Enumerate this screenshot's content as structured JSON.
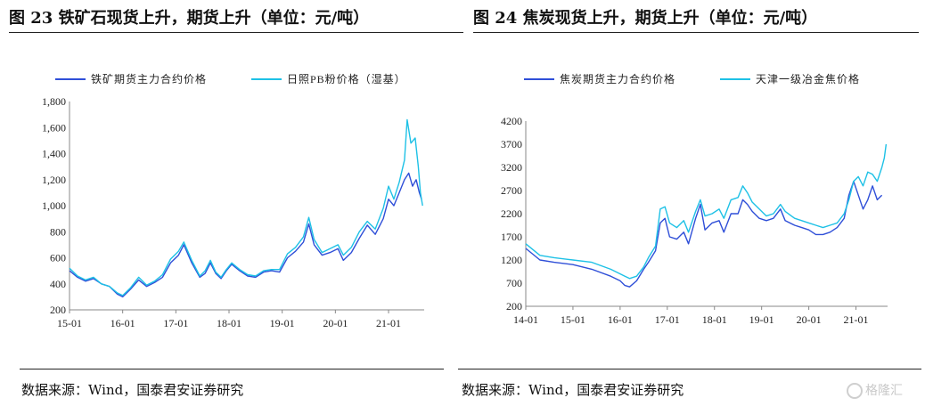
{
  "figures": [
    {
      "title": "图 23 铁矿石现货上升，期货上升（单位：元/吨）",
      "source": "数据来源：Wind，国泰君安证券研究"
    },
    {
      "title": "图 24 焦炭现货上升，期货上升（单位：元/吨）",
      "source": "数据来源：Wind，国泰君安证券研究"
    }
  ],
  "watermark": "格隆汇",
  "chart_data": [
    {
      "type": "line",
      "title": "",
      "xlabel": "",
      "ylabel": "",
      "x_ticks": [
        "15-01",
        "16-01",
        "17-01",
        "18-01",
        "19-01",
        "20-01",
        "21-01"
      ],
      "y_ticks": [
        "200",
        "400",
        "600",
        "800",
        "1,000",
        "1,200",
        "1,400",
        "1,600",
        "1,800"
      ],
      "ylim": [
        200,
        1800
      ],
      "xlim": [
        2015.0,
        2021.67
      ],
      "grid": false,
      "legend_position": "top",
      "series": [
        {
          "name": "铁矿期货主力合约价格",
          "color": "#2f4fd8",
          "points": [
            [
              2015.0,
              500
            ],
            [
              2015.15,
              450
            ],
            [
              2015.3,
              420
            ],
            [
              2015.45,
              440
            ],
            [
              2015.6,
              400
            ],
            [
              2015.75,
              380
            ],
            [
              2015.9,
              320
            ],
            [
              2016.0,
              300
            ],
            [
              2016.15,
              360
            ],
            [
              2016.3,
              430
            ],
            [
              2016.45,
              380
            ],
            [
              2016.6,
              410
            ],
            [
              2016.75,
              450
            ],
            [
              2016.9,
              560
            ],
            [
              2017.05,
              620
            ],
            [
              2017.15,
              700
            ],
            [
              2017.3,
              560
            ],
            [
              2017.45,
              450
            ],
            [
              2017.55,
              480
            ],
            [
              2017.65,
              560
            ],
            [
              2017.75,
              480
            ],
            [
              2017.85,
              440
            ],
            [
              2017.95,
              500
            ],
            [
              2018.05,
              550
            ],
            [
              2018.2,
              500
            ],
            [
              2018.35,
              460
            ],
            [
              2018.5,
              450
            ],
            [
              2018.65,
              490
            ],
            [
              2018.8,
              500
            ],
            [
              2018.95,
              490
            ],
            [
              2019.1,
              600
            ],
            [
              2019.25,
              650
            ],
            [
              2019.4,
              720
            ],
            [
              2019.5,
              860
            ],
            [
              2019.6,
              700
            ],
            [
              2019.75,
              620
            ],
            [
              2019.9,
              640
            ],
            [
              2020.05,
              670
            ],
            [
              2020.15,
              580
            ],
            [
              2020.3,
              640
            ],
            [
              2020.45,
              750
            ],
            [
              2020.6,
              850
            ],
            [
              2020.75,
              780
            ],
            [
              2020.9,
              900
            ],
            [
              2021.0,
              1050
            ],
            [
              2021.1,
              1000
            ],
            [
              2021.2,
              1100
            ],
            [
              2021.3,
              1200
            ],
            [
              2021.38,
              1250
            ],
            [
              2021.45,
              1150
            ],
            [
              2021.52,
              1200
            ],
            [
              2021.58,
              1100
            ],
            [
              2021.62,
              1050
            ]
          ]
        },
        {
          "name": "日照PB粉价格（湿基）",
          "color": "#1ec1e6",
          "points": [
            [
              2015.0,
              520
            ],
            [
              2015.15,
              460
            ],
            [
              2015.3,
              430
            ],
            [
              2015.45,
              450
            ],
            [
              2015.6,
              400
            ],
            [
              2015.75,
              380
            ],
            [
              2015.9,
              330
            ],
            [
              2016.0,
              310
            ],
            [
              2016.15,
              370
            ],
            [
              2016.3,
              450
            ],
            [
              2016.45,
              390
            ],
            [
              2016.6,
              420
            ],
            [
              2016.75,
              470
            ],
            [
              2016.9,
              590
            ],
            [
              2017.05,
              650
            ],
            [
              2017.15,
              720
            ],
            [
              2017.3,
              580
            ],
            [
              2017.45,
              460
            ],
            [
              2017.55,
              500
            ],
            [
              2017.65,
              580
            ],
            [
              2017.75,
              490
            ],
            [
              2017.85,
              450
            ],
            [
              2017.95,
              510
            ],
            [
              2018.05,
              560
            ],
            [
              2018.2,
              510
            ],
            [
              2018.35,
              470
            ],
            [
              2018.5,
              460
            ],
            [
              2018.65,
              500
            ],
            [
              2018.8,
              510
            ],
            [
              2018.95,
              510
            ],
            [
              2019.1,
              630
            ],
            [
              2019.25,
              680
            ],
            [
              2019.4,
              760
            ],
            [
              2019.5,
              910
            ],
            [
              2019.6,
              740
            ],
            [
              2019.75,
              640
            ],
            [
              2019.9,
              670
            ],
            [
              2020.05,
              700
            ],
            [
              2020.15,
              620
            ],
            [
              2020.3,
              680
            ],
            [
              2020.45,
              800
            ],
            [
              2020.6,
              880
            ],
            [
              2020.75,
              820
            ],
            [
              2020.9,
              980
            ],
            [
              2021.0,
              1150
            ],
            [
              2021.1,
              1050
            ],
            [
              2021.2,
              1180
            ],
            [
              2021.3,
              1350
            ],
            [
              2021.35,
              1660
            ],
            [
              2021.42,
              1480
            ],
            [
              2021.5,
              1520
            ],
            [
              2021.56,
              1300
            ],
            [
              2021.6,
              1100
            ],
            [
              2021.64,
              1000
            ]
          ]
        }
      ]
    },
    {
      "type": "line",
      "title": "",
      "xlabel": "",
      "ylabel": "",
      "x_ticks": [
        "14-01",
        "15-01",
        "16-01",
        "17-01",
        "18-01",
        "19-01",
        "20-01",
        "21-01"
      ],
      "y_ticks": [
        "200",
        "700",
        "1200",
        "1700",
        "2200",
        "2700",
        "3200",
        "3700",
        "4200"
      ],
      "ylim": [
        200,
        4200
      ],
      "xlim": [
        2014.0,
        2021.67
      ],
      "grid": false,
      "legend_position": "top",
      "series": [
        {
          "name": "焦炭期货主力合约价格",
          "color": "#2f4fd8",
          "points": [
            [
              2014.0,
              1450
            ],
            [
              2014.3,
              1200
            ],
            [
              2014.6,
              1150
            ],
            [
              2015.0,
              1100
            ],
            [
              2015.4,
              1000
            ],
            [
              2015.8,
              850
            ],
            [
              2016.0,
              750
            ],
            [
              2016.1,
              650
            ],
            [
              2016.2,
              620
            ],
            [
              2016.35,
              750
            ],
            [
              2016.5,
              1000
            ],
            [
              2016.6,
              1150
            ],
            [
              2016.75,
              1400
            ],
            [
              2016.85,
              2000
            ],
            [
              2016.95,
              2100
            ],
            [
              2017.05,
              1700
            ],
            [
              2017.2,
              1650
            ],
            [
              2017.35,
              1800
            ],
            [
              2017.45,
              1550
            ],
            [
              2017.6,
              2100
            ],
            [
              2017.7,
              2400
            ],
            [
              2017.8,
              1850
            ],
            [
              2017.95,
              2000
            ],
            [
              2018.1,
              2050
            ],
            [
              2018.2,
              1800
            ],
            [
              2018.35,
              2200
            ],
            [
              2018.5,
              2200
            ],
            [
              2018.6,
              2500
            ],
            [
              2018.7,
              2400
            ],
            [
              2018.8,
              2250
            ],
            [
              2018.95,
              2100
            ],
            [
              2019.1,
              2050
            ],
            [
              2019.25,
              2100
            ],
            [
              2019.4,
              2300
            ],
            [
              2019.5,
              2050
            ],
            [
              2019.7,
              1950
            ],
            [
              2019.85,
              1900
            ],
            [
              2020.0,
              1850
            ],
            [
              2020.15,
              1750
            ],
            [
              2020.3,
              1750
            ],
            [
              2020.45,
              1800
            ],
            [
              2020.6,
              1900
            ],
            [
              2020.75,
              2100
            ],
            [
              2020.85,
              2600
            ],
            [
              2020.95,
              2900
            ],
            [
              2021.05,
              2600
            ],
            [
              2021.15,
              2300
            ],
            [
              2021.25,
              2500
            ],
            [
              2021.35,
              2800
            ],
            [
              2021.45,
              2500
            ],
            [
              2021.55,
              2600
            ]
          ]
        },
        {
          "name": "天津一级冶金焦价格",
          "color": "#1ec1e6",
          "points": [
            [
              2014.0,
              1550
            ],
            [
              2014.3,
              1300
            ],
            [
              2014.6,
              1250
            ],
            [
              2015.0,
              1200
            ],
            [
              2015.4,
              1150
            ],
            [
              2015.8,
              1000
            ],
            [
              2016.0,
              900
            ],
            [
              2016.1,
              850
            ],
            [
              2016.2,
              800
            ],
            [
              2016.35,
              850
            ],
            [
              2016.5,
              1050
            ],
            [
              2016.6,
              1250
            ],
            [
              2016.75,
              1500
            ],
            [
              2016.85,
              2300
            ],
            [
              2016.95,
              2350
            ],
            [
              2017.05,
              2000
            ],
            [
              2017.2,
              1900
            ],
            [
              2017.35,
              2050
            ],
            [
              2017.45,
              1800
            ],
            [
              2017.6,
              2250
            ],
            [
              2017.7,
              2500
            ],
            [
              2017.8,
              2150
            ],
            [
              2017.95,
              2200
            ],
            [
              2018.1,
              2300
            ],
            [
              2018.2,
              2100
            ],
            [
              2018.35,
              2500
            ],
            [
              2018.5,
              2550
            ],
            [
              2018.6,
              2800
            ],
            [
              2018.7,
              2650
            ],
            [
              2018.8,
              2450
            ],
            [
              2018.95,
              2300
            ],
            [
              2019.1,
              2150
            ],
            [
              2019.25,
              2200
            ],
            [
              2019.4,
              2400
            ],
            [
              2019.5,
              2250
            ],
            [
              2019.7,
              2100
            ],
            [
              2019.85,
              2050
            ],
            [
              2020.0,
              2000
            ],
            [
              2020.15,
              1950
            ],
            [
              2020.3,
              1900
            ],
            [
              2020.45,
              1950
            ],
            [
              2020.6,
              2000
            ],
            [
              2020.75,
              2200
            ],
            [
              2020.85,
              2500
            ],
            [
              2020.95,
              2900
            ],
            [
              2021.05,
              3000
            ],
            [
              2021.15,
              2800
            ],
            [
              2021.25,
              3100
            ],
            [
              2021.35,
              3050
            ],
            [
              2021.45,
              2900
            ],
            [
              2021.55,
              3200
            ],
            [
              2021.6,
              3400
            ],
            [
              2021.64,
              3700
            ]
          ]
        }
      ]
    }
  ]
}
